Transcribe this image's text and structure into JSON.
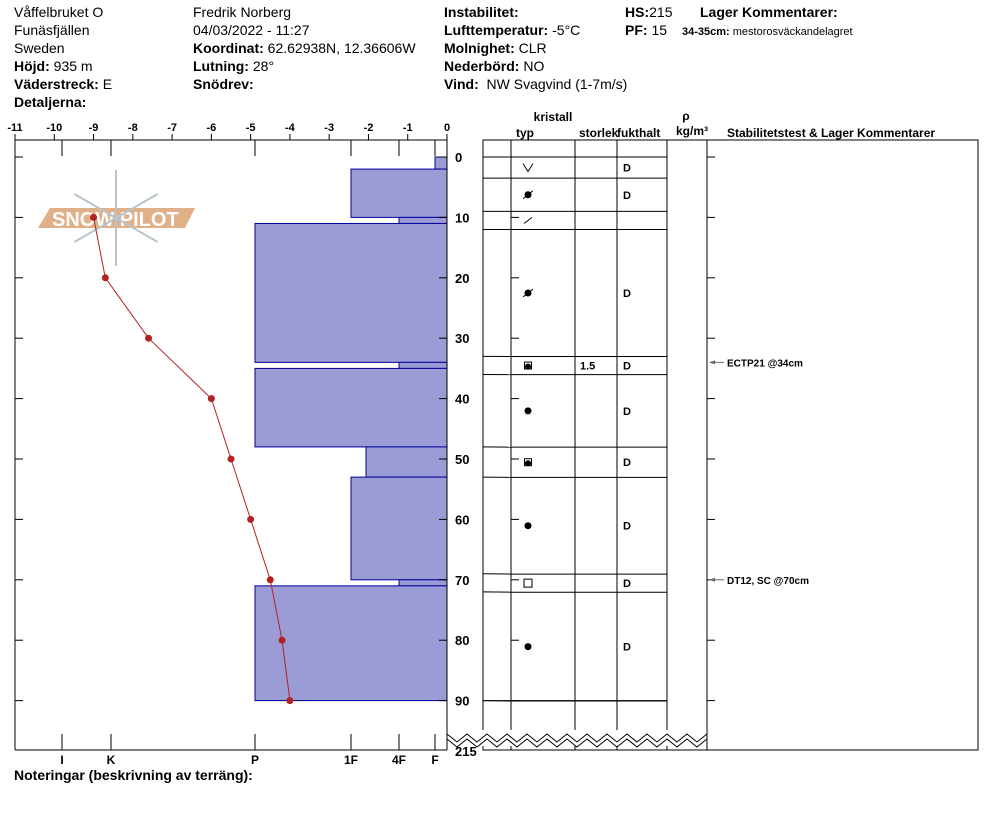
{
  "header": {
    "location": "Våffelbruket O",
    "area": "Funäsfjällen",
    "country": "Sweden",
    "elevation_label": "Höjd:",
    "elevation": "935 m",
    "aspect_label": "Väderstreck:",
    "aspect": "E",
    "details_label": "Detaljerna:",
    "observer": "Fredrik Norberg",
    "datetime": "04/03/2022 - 11:27",
    "coord_label": "Koordinat:",
    "coord": "62.62938N, 12.36606W",
    "slope_label": "Lutning:",
    "slope": "28°",
    "drift_label": "Snödrev:",
    "instability_label": "Instabilitet:",
    "airtemp_label": "Lufttemperatur:",
    "airtemp": "-5°C",
    "cloud_label": "Molnighet:",
    "cloud": "CLR",
    "precip_label": "Nederbörd:",
    "precip": "NO",
    "wind_label": "Vind:",
    "wind": "NW Svagvind (1-7m/s)",
    "hs_label": "HS:",
    "hs": "215",
    "pf_label": "PF:",
    "pf": "15",
    "layer_comments_label": "Lager Kommentarer:",
    "layer_comment_range": "34-35cm:",
    "layer_comment": "mestorosväckandelagret"
  },
  "table_headers": {
    "kristall": "kristall",
    "typ": "typ",
    "storlek": "storlek",
    "fukthalt": "fukthalt",
    "rho": "ρ",
    "density_unit": "kg/m³",
    "comments": "Stabilitetstest & Lager Kommentarer"
  },
  "notes_label": "Noteringar (beskrivning av terräng):",
  "watermark": "SNOW PILOT",
  "chart_data": {
    "type": "snow-profile",
    "temperature_axis": {
      "ticks": [
        "-11",
        "-10",
        "-9",
        "-8",
        "-7",
        "-6",
        "-5",
        "-4",
        "-3",
        "-2",
        "-1",
        "0"
      ],
      "range": [
        -11,
        0
      ]
    },
    "hardness_axis": {
      "ticks": [
        "I",
        "K",
        "P",
        "1F",
        "4F",
        "F"
      ]
    },
    "depth_axis": {
      "ticks": [
        "0",
        "10",
        "20",
        "30",
        "40",
        "50",
        "60",
        "70",
        "80",
        "90"
      ],
      "break_label": "215",
      "range": [
        0,
        90
      ]
    },
    "temperature_profile": {
      "color": "#b22222",
      "depth": [
        10,
        20,
        30,
        40,
        50,
        60,
        70,
        80,
        90
      ],
      "temp": [
        -9,
        -8.7,
        -7.6,
        -6,
        -5.5,
        -5,
        -4.5,
        -4.2,
        -4
      ]
    },
    "hardness_layers": {
      "color": "#9b9bd5",
      "edge": "#000099",
      "layers": [
        {
          "top": 0,
          "bottom": 2,
          "hardness": "F"
        },
        {
          "top": 2,
          "bottom": 10,
          "hardness": "1F"
        },
        {
          "top": 10,
          "bottom": 11,
          "hardness": "4F"
        },
        {
          "top": 11,
          "bottom": 34,
          "hardness": "P"
        },
        {
          "top": 34,
          "bottom": 35,
          "hardness": "4F"
        },
        {
          "top": 35,
          "bottom": 48,
          "hardness": "P"
        },
        {
          "top": 48,
          "bottom": 53,
          "hardness": "1F-"
        },
        {
          "top": 53,
          "bottom": 70,
          "hardness": "1F"
        },
        {
          "top": 70,
          "bottom": 71,
          "hardness": "4F"
        },
        {
          "top": 71,
          "bottom": 90,
          "hardness": "P"
        }
      ]
    },
    "grain_layers": [
      {
        "top": 0,
        "bottom": 3.5,
        "grain": "decomposing-icon",
        "size": "",
        "moisture": "D"
      },
      {
        "top": 3.5,
        "bottom": 9,
        "grain": "rounding-faceted-icon",
        "size": "",
        "moisture": "D"
      },
      {
        "top": 9,
        "bottom": 12,
        "grain": "crust-icon",
        "size": "",
        "moisture": ""
      },
      {
        "top": 12,
        "bottom": 33,
        "grain": "rounding-faceted-icon",
        "size": "",
        "moisture": "D"
      },
      {
        "top": 33,
        "bottom": 36,
        "grain": "faceted-rounded-icon",
        "size": "1.5",
        "moisture": "D"
      },
      {
        "top": 36,
        "bottom": 48,
        "grain": "rounded-icon",
        "size": "",
        "moisture": "D"
      },
      {
        "top": 48,
        "bottom": 53,
        "grain": "faceted-rounded-icon",
        "size": "",
        "moisture": "D"
      },
      {
        "top": 53,
        "bottom": 69,
        "grain": "rounded-icon",
        "size": "",
        "moisture": "D"
      },
      {
        "top": 69,
        "bottom": 72,
        "grain": "faceted-icon",
        "size": "",
        "moisture": "D"
      },
      {
        "top": 72,
        "bottom": 90,
        "grain": "rounded-icon",
        "size": "",
        "moisture": "D"
      }
    ],
    "stability_tests": [
      {
        "depth": 34,
        "label": "ECTP21 @34cm"
      },
      {
        "depth": 70,
        "label": "DT12, SC @70cm"
      }
    ]
  }
}
